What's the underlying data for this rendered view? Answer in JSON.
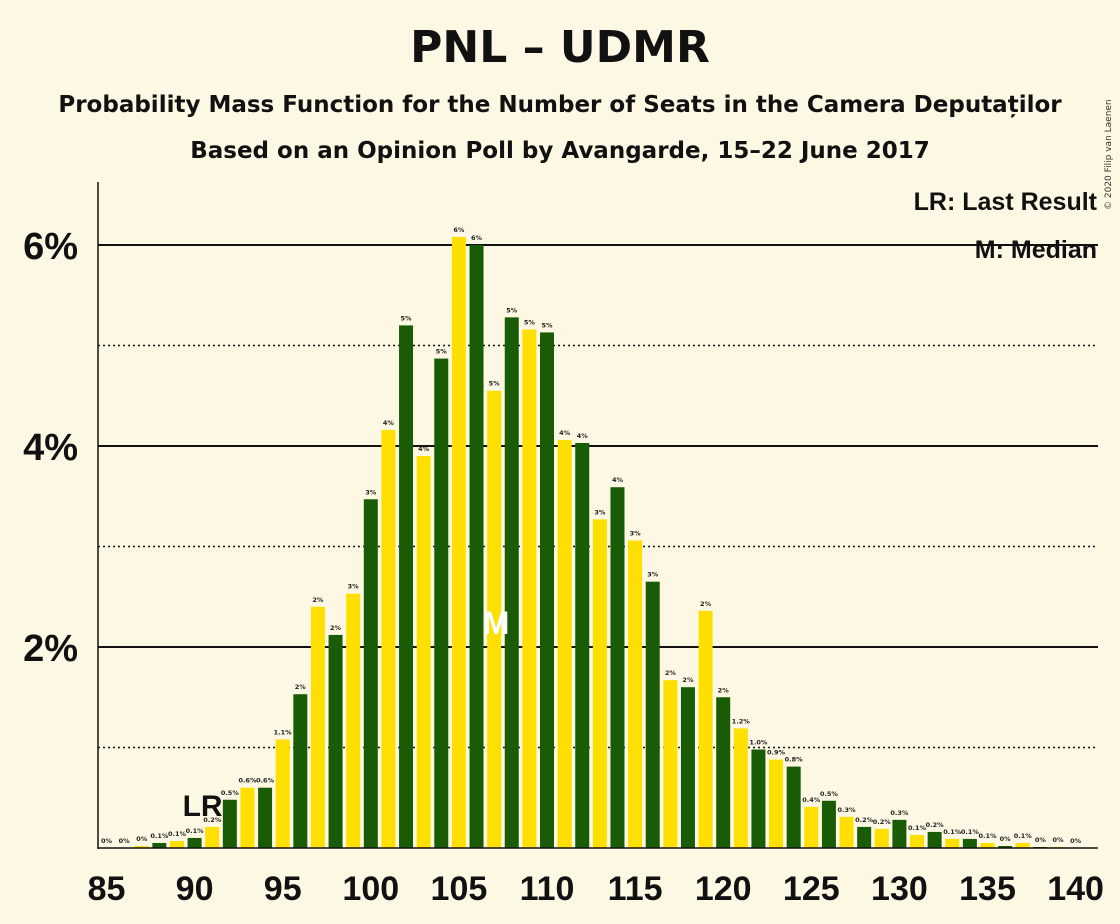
{
  "title": "PNL – UDMR",
  "subtitle": "Probability Mass Function for the Number of Seats in the Camera Deputaților",
  "subtitle2": "Based on an Opinion Poll by Avangarde, 15–22 June 2017",
  "copyright": "© 2020 Filip van Laenen",
  "colors": {
    "green": "#1a5c05",
    "yellow": "#ffdf00",
    "background": "#fdf8e3"
  },
  "chart_data": {
    "type": "bar",
    "x": [
      85,
      86,
      87,
      88,
      89,
      90,
      91,
      92,
      93,
      94,
      95,
      96,
      97,
      98,
      99,
      100,
      101,
      102,
      103,
      104,
      105,
      106,
      107,
      108,
      109,
      110,
      111,
      112,
      113,
      114,
      115,
      116,
      117,
      118,
      119,
      120,
      121,
      122,
      123,
      124,
      125,
      126,
      127,
      128,
      129,
      130,
      131,
      132,
      133,
      134,
      135,
      136,
      137,
      138,
      139,
      140
    ],
    "values": [
      0,
      0,
      0.02,
      0.05,
      0.07,
      0.1,
      0.21,
      0.48,
      0.6,
      0.6,
      1.08,
      1.53,
      2.4,
      2.12,
      2.53,
      3.47,
      4.16,
      5.2,
      3.9,
      4.87,
      6.08,
      6.0,
      4.55,
      5.28,
      5.16,
      5.13,
      4.06,
      4.03,
      3.27,
      3.59,
      3.06,
      2.65,
      1.67,
      1.6,
      2.36,
      1.5,
      1.19,
      0.98,
      0.88,
      0.81,
      0.41,
      0.47,
      0.31,
      0.21,
      0.19,
      0.28,
      0.13,
      0.16,
      0.09,
      0.09,
      0.05,
      0.02,
      0.05,
      0.01,
      0.01,
      0
    ],
    "value_labels": [
      "0%",
      "0%",
      "0%",
      "0.1%",
      "0.1%",
      "0.1%",
      "0.2%",
      "0.5%",
      "0.6%",
      "0.6%",
      "1.1%",
      "2%",
      "2%",
      "2%",
      "3%",
      "3%",
      "4%",
      "5%",
      "4%",
      "5%",
      "6%",
      "6%",
      "5%",
      "5%",
      "5%",
      "5%",
      "4%",
      "4%",
      "3%",
      "4%",
      "3%",
      "3%",
      "2%",
      "2%",
      "2%",
      "2%",
      "1.2%",
      "1.0%",
      "0.9%",
      "0.8%",
      "0.4%",
      "0.5%",
      "0.3%",
      "0.2%",
      "0.2%",
      "0.3%",
      "0.1%",
      "0.2%",
      "0.1%",
      "0.1%",
      "0.1%",
      "0%",
      "0.1%",
      "0%",
      "0%",
      "0%"
    ],
    "xticks": [
      85,
      90,
      95,
      100,
      105,
      110,
      115,
      120,
      125,
      130,
      135,
      140
    ],
    "xtick_labels": [
      "85",
      "90",
      "95",
      "100",
      "105",
      "110",
      "115",
      "120",
      "125",
      "130",
      "135",
      "140"
    ],
    "yticks": [
      2,
      4,
      6
    ],
    "ytick_labels": [
      "2%",
      "4%",
      "6%"
    ],
    "ylim": [
      0,
      6.6
    ],
    "xlabel": "",
    "ylabel": "",
    "last_result": {
      "seat": 90,
      "label": "LR"
    },
    "median": {
      "seat": 107,
      "label": "M"
    },
    "legend": {
      "position": "top-right",
      "last_result_text": "LR: Last Result",
      "median_text": "M: Median"
    },
    "grid": {
      "solid_at": [
        2,
        4,
        6
      ],
      "dotted_at": [
        1,
        3,
        5
      ]
    }
  }
}
